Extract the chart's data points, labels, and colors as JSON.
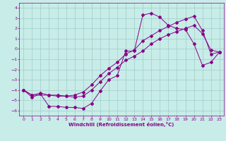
{
  "xlabel": "Windchill (Refroidissement éolien,°C)",
  "bg_color": "#c8ece8",
  "grid_color": "#a0ccc8",
  "line_color": "#880088",
  "xlim": [
    -0.5,
    23.5
  ],
  "ylim": [
    -6.5,
    4.5
  ],
  "xticks": [
    0,
    1,
    2,
    3,
    4,
    5,
    6,
    7,
    8,
    9,
    10,
    11,
    12,
    13,
    14,
    15,
    16,
    17,
    18,
    19,
    20,
    21,
    22,
    23
  ],
  "yticks": [
    -6,
    -5,
    -4,
    -3,
    -2,
    -1,
    0,
    1,
    2,
    3,
    4
  ],
  "series1_x": [
    0,
    1,
    2,
    3,
    4,
    5,
    6,
    7,
    8,
    9,
    10,
    11,
    12,
    13,
    14,
    15,
    16,
    17,
    18,
    19,
    20,
    21,
    22,
    23
  ],
  "series1_y": [
    -4.0,
    -4.7,
    -4.4,
    -5.6,
    -5.6,
    -5.7,
    -5.7,
    -5.8,
    -5.3,
    -4.1,
    -3.0,
    -2.6,
    -0.2,
    -0.2,
    3.3,
    3.5,
    3.1,
    2.3,
    2.0,
    1.9,
    0.5,
    -1.6,
    -1.3,
    -0.3
  ],
  "series2_x": [
    0,
    1,
    3,
    4,
    5,
    6,
    7,
    8,
    9,
    10,
    11,
    12,
    13,
    14,
    15,
    16,
    17,
    18,
    19,
    20,
    21,
    22,
    23
  ],
  "series2_y": [
    -4.0,
    -4.5,
    -4.5,
    -4.6,
    -4.6,
    -4.7,
    -4.6,
    -4.0,
    -3.2,
    -2.4,
    -1.8,
    -1.1,
    -0.7,
    -0.2,
    0.5,
    1.0,
    1.4,
    1.7,
    2.0,
    2.3,
    1.5,
    -0.1,
    -0.3
  ],
  "series3_x": [
    0,
    1,
    2,
    3,
    4,
    5,
    6,
    7,
    8,
    9,
    10,
    11,
    12,
    13,
    14,
    15,
    16,
    17,
    18,
    19,
    20,
    21,
    22,
    23
  ],
  "series3_y": [
    -4.0,
    -4.5,
    -4.3,
    -4.5,
    -4.5,
    -4.6,
    -4.5,
    -4.2,
    -3.5,
    -2.6,
    -1.9,
    -1.3,
    -0.5,
    -0.1,
    0.8,
    1.3,
    1.8,
    2.2,
    2.6,
    2.9,
    3.2,
    1.8,
    -0.5,
    -0.3
  ]
}
